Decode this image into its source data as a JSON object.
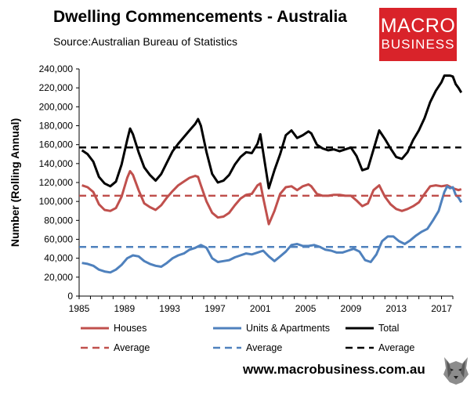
{
  "title": "Dwelling Commencements - Australia",
  "source": "Source:Australian Bureau of Statistics",
  "logo": {
    "line1": "MACRO",
    "line2": "BUSINESS"
  },
  "website": "www.macrobusiness.com.au",
  "colors": {
    "houses": "#c0504d",
    "units": "#4f81bd",
    "total": "#000000",
    "logo_bg": "#d9232a"
  },
  "chart_data": {
    "type": "line",
    "title": "Dwelling Commencements - Australia",
    "xlabel": "",
    "ylabel": "Number (Rolling Annual)",
    "xlim": [
      1985,
      2018
    ],
    "ylim": [
      0,
      240000
    ],
    "yticks": [
      0,
      20000,
      40000,
      60000,
      80000,
      100000,
      120000,
      140000,
      160000,
      180000,
      200000,
      220000,
      240000
    ],
    "ytick_labels": [
      "0",
      "20,000",
      "40,000",
      "60,000",
      "80,000",
      "100,000",
      "120,000",
      "140,000",
      "160,000",
      "180,000",
      "200,000",
      "220,000",
      "240,000"
    ],
    "xticks": [
      1985,
      1989,
      1993,
      1997,
      2001,
      2005,
      2009,
      2013,
      2017
    ],
    "xtick_labels": [
      "1985",
      "1989",
      "1993",
      "1997",
      "2001",
      "2005",
      "2009",
      "2013",
      "2017"
    ],
    "grid": false,
    "legend_position": "bottom",
    "series": [
      {
        "name": "Houses",
        "style": "solid",
        "color": "#c0504d",
        "points": [
          [
            1985.25,
            117000
          ],
          [
            1985.75,
            115000
          ],
          [
            1986.25,
            110000
          ],
          [
            1986.75,
            97000
          ],
          [
            1987.25,
            91000
          ],
          [
            1987.75,
            90000
          ],
          [
            1988.25,
            93000
          ],
          [
            1988.75,
            105000
          ],
          [
            1989.25,
            125000
          ],
          [
            1989.5,
            132000
          ],
          [
            1989.75,
            128000
          ],
          [
            1990.25,
            112000
          ],
          [
            1990.75,
            98000
          ],
          [
            1991.25,
            94000
          ],
          [
            1991.75,
            91000
          ],
          [
            1992.25,
            96000
          ],
          [
            1992.75,
            104000
          ],
          [
            1993.25,
            111000
          ],
          [
            1993.75,
            117000
          ],
          [
            1994.25,
            121000
          ],
          [
            1994.75,
            125000
          ],
          [
            1995.25,
            127000
          ],
          [
            1995.5,
            126000
          ],
          [
            1995.75,
            117000
          ],
          [
            1996.25,
            100000
          ],
          [
            1996.75,
            88000
          ],
          [
            1997.25,
            83000
          ],
          [
            1997.75,
            84000
          ],
          [
            1998.25,
            88000
          ],
          [
            1998.75,
            96000
          ],
          [
            1999.25,
            103000
          ],
          [
            1999.75,
            107000
          ],
          [
            2000.25,
            108000
          ],
          [
            2000.75,
            117000
          ],
          [
            2001.0,
            119000
          ],
          [
            2001.25,
            104000
          ],
          [
            2001.75,
            76000
          ],
          [
            2002.25,
            90000
          ],
          [
            2002.75,
            108000
          ],
          [
            2003.25,
            115000
          ],
          [
            2003.75,
            116000
          ],
          [
            2004.25,
            112000
          ],
          [
            2004.75,
            116000
          ],
          [
            2005.25,
            118000
          ],
          [
            2005.5,
            116000
          ],
          [
            2006.0,
            108000
          ],
          [
            2006.5,
            106000
          ],
          [
            2007.0,
            106000
          ],
          [
            2007.5,
            107000
          ],
          [
            2008.0,
            107000
          ],
          [
            2008.5,
            106000
          ],
          [
            2009.0,
            106000
          ],
          [
            2009.5,
            101000
          ],
          [
            2010.0,
            95000
          ],
          [
            2010.5,
            98000
          ],
          [
            2011.0,
            112000
          ],
          [
            2011.5,
            117000
          ],
          [
            2012.0,
            105000
          ],
          [
            2012.5,
            97000
          ],
          [
            2013.0,
            92000
          ],
          [
            2013.5,
            90000
          ],
          [
            2014.0,
            92000
          ],
          [
            2014.5,
            95000
          ],
          [
            2015.0,
            99000
          ],
          [
            2015.5,
            108000
          ],
          [
            2016.0,
            116000
          ],
          [
            2016.5,
            117000
          ],
          [
            2017.0,
            116000
          ],
          [
            2017.5,
            117000
          ],
          [
            2018.0,
            114000
          ],
          [
            2018.5,
            112000
          ],
          [
            2018.75,
            113000
          ]
        ]
      },
      {
        "name": "Units & Apartments",
        "style": "solid",
        "color": "#4f81bd",
        "points": [
          [
            1985.25,
            35000
          ],
          [
            1985.75,
            34000
          ],
          [
            1986.25,
            32000
          ],
          [
            1986.75,
            28000
          ],
          [
            1987.25,
            26000
          ],
          [
            1987.75,
            25000
          ],
          [
            1988.25,
            28000
          ],
          [
            1988.75,
            33000
          ],
          [
            1989.25,
            40000
          ],
          [
            1989.75,
            43000
          ],
          [
            1990.25,
            42000
          ],
          [
            1990.75,
            37000
          ],
          [
            1991.25,
            34000
          ],
          [
            1991.75,
            32000
          ],
          [
            1992.25,
            31000
          ],
          [
            1992.75,
            35000
          ],
          [
            1993.25,
            40000
          ],
          [
            1993.75,
            43000
          ],
          [
            1994.25,
            45000
          ],
          [
            1994.75,
            49000
          ],
          [
            1995.25,
            51000
          ],
          [
            1995.75,
            54000
          ],
          [
            1996.25,
            51000
          ],
          [
            1996.75,
            40000
          ],
          [
            1997.25,
            36000
          ],
          [
            1997.75,
            37000
          ],
          [
            1998.25,
            38000
          ],
          [
            1998.75,
            41000
          ],
          [
            1999.25,
            43000
          ],
          [
            1999.75,
            45000
          ],
          [
            2000.25,
            44000
          ],
          [
            2000.75,
            46000
          ],
          [
            2001.25,
            48000
          ],
          [
            2001.75,
            42000
          ],
          [
            2002.25,
            37000
          ],
          [
            2002.75,
            42000
          ],
          [
            2003.25,
            47000
          ],
          [
            2003.75,
            54000
          ],
          [
            2004.25,
            55000
          ],
          [
            2004.75,
            53000
          ],
          [
            2005.25,
            53000
          ],
          [
            2005.75,
            54000
          ],
          [
            2006.25,
            52000
          ],
          [
            2006.75,
            49000
          ],
          [
            2007.25,
            48000
          ],
          [
            2007.75,
            46000
          ],
          [
            2008.25,
            46000
          ],
          [
            2008.75,
            48000
          ],
          [
            2009.25,
            50000
          ],
          [
            2009.75,
            47000
          ],
          [
            2010.25,
            38000
          ],
          [
            2010.75,
            36000
          ],
          [
            2011.25,
            44000
          ],
          [
            2011.75,
            58000
          ],
          [
            2012.25,
            63000
          ],
          [
            2012.75,
            63000
          ],
          [
            2013.25,
            58000
          ],
          [
            2013.75,
            55000
          ],
          [
            2014.25,
            59000
          ],
          [
            2014.75,
            64000
          ],
          [
            2015.25,
            68000
          ],
          [
            2015.75,
            71000
          ],
          [
            2016.25,
            80000
          ],
          [
            2016.75,
            90000
          ],
          [
            2017.0,
            100000
          ],
          [
            2017.25,
            110000
          ],
          [
            2017.5,
            116000
          ],
          [
            2017.75,
            114000
          ],
          [
            2018.0,
            115000
          ],
          [
            2018.25,
            107000
          ],
          [
            2018.5,
            104000
          ],
          [
            2018.75,
            99000
          ]
        ]
      },
      {
        "name": "Total",
        "style": "solid",
        "color": "#000000",
        "points": [
          [
            1985.25,
            154000
          ],
          [
            1985.75,
            150000
          ],
          [
            1986.25,
            142000
          ],
          [
            1986.75,
            126000
          ],
          [
            1987.25,
            119000
          ],
          [
            1987.75,
            116000
          ],
          [
            1988.25,
            121000
          ],
          [
            1988.75,
            139000
          ],
          [
            1989.25,
            165000
          ],
          [
            1989.5,
            177000
          ],
          [
            1989.75,
            171000
          ],
          [
            1990.25,
            152000
          ],
          [
            1990.75,
            136000
          ],
          [
            1991.25,
            128000
          ],
          [
            1991.75,
            122000
          ],
          [
            1992.25,
            129000
          ],
          [
            1992.75,
            141000
          ],
          [
            1993.25,
            153000
          ],
          [
            1993.75,
            161000
          ],
          [
            1994.25,
            168000
          ],
          [
            1994.75,
            175000
          ],
          [
            1995.25,
            182000
          ],
          [
            1995.5,
            187000
          ],
          [
            1995.75,
            180000
          ],
          [
            1996.25,
            152000
          ],
          [
            1996.75,
            129000
          ],
          [
            1997.25,
            120000
          ],
          [
            1997.75,
            122000
          ],
          [
            1998.25,
            128000
          ],
          [
            1998.75,
            139000
          ],
          [
            1999.25,
            147000
          ],
          [
            1999.75,
            152000
          ],
          [
            2000.25,
            151000
          ],
          [
            2000.75,
            161000
          ],
          [
            2001.0,
            171000
          ],
          [
            2001.25,
            152000
          ],
          [
            2001.75,
            114000
          ],
          [
            2002.25,
            133000
          ],
          [
            2002.75,
            150000
          ],
          [
            2003.25,
            170000
          ],
          [
            2003.75,
            175000
          ],
          [
            2004.25,
            167000
          ],
          [
            2004.75,
            170000
          ],
          [
            2005.25,
            174000
          ],
          [
            2005.5,
            172000
          ],
          [
            2006.0,
            160000
          ],
          [
            2006.5,
            156000
          ],
          [
            2007.0,
            154000
          ],
          [
            2007.5,
            155000
          ],
          [
            2008.0,
            153000
          ],
          [
            2008.5,
            155000
          ],
          [
            2009.0,
            157000
          ],
          [
            2009.5,
            148000
          ],
          [
            2010.0,
            133000
          ],
          [
            2010.5,
            135000
          ],
          [
            2011.0,
            155000
          ],
          [
            2011.5,
            175000
          ],
          [
            2012.0,
            166000
          ],
          [
            2012.5,
            156000
          ],
          [
            2013.0,
            147000
          ],
          [
            2013.5,
            145000
          ],
          [
            2014.0,
            152000
          ],
          [
            2014.5,
            165000
          ],
          [
            2015.0,
            175000
          ],
          [
            2015.5,
            188000
          ],
          [
            2016.0,
            205000
          ],
          [
            2016.5,
            217000
          ],
          [
            2017.0,
            226000
          ],
          [
            2017.25,
            233000
          ],
          [
            2017.75,
            233000
          ],
          [
            2018.0,
            232000
          ],
          [
            2018.25,
            224000
          ],
          [
            2018.5,
            220000
          ],
          [
            2018.75,
            215000
          ]
        ]
      },
      {
        "name": "Average",
        "style": "dashed",
        "color": "#c0504d",
        "points": [
          [
            1985,
            106000
          ],
          [
            2018.75,
            106000
          ]
        ]
      },
      {
        "name": "Average",
        "style": "dashed",
        "color": "#4f81bd",
        "points": [
          [
            1985,
            52000
          ],
          [
            2018.75,
            52000
          ]
        ]
      },
      {
        "name": "Average",
        "style": "dashed",
        "color": "#000000",
        "points": [
          [
            1985,
            157000
          ],
          [
            2018.75,
            157000
          ]
        ]
      }
    ]
  }
}
